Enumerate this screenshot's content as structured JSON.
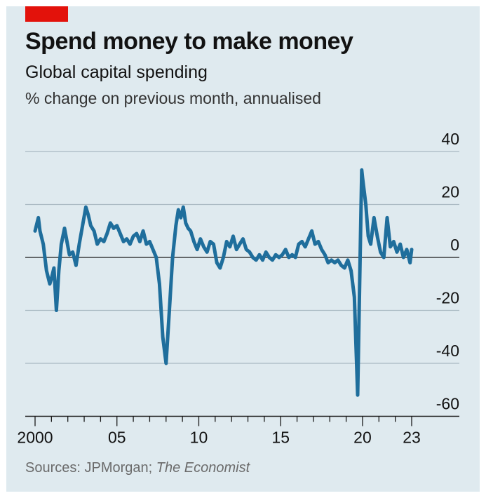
{
  "header": {
    "title": "Spend money to make money",
    "subtitle": "Global capital spending",
    "unit": "% change on previous month, annualised"
  },
  "footer": {
    "source_prefix": "Sources: JPMorgan;",
    "source_publication": "The Economist"
  },
  "colors": {
    "line": "#1f6e9c",
    "accent": "#e3120b",
    "background": "#dfeaef",
    "grid": "#a9b9c2"
  },
  "chart_data": {
    "type": "line",
    "title": "Spend money to make money",
    "subtitle": "Global capital spending",
    "ylabel": "% change on previous month, annualised",
    "xlabel": "",
    "xlim": [
      2000,
      2023
    ],
    "ylim": [
      -60,
      40
    ],
    "y_ticks": [
      40,
      20,
      0,
      -20,
      -40,
      -60
    ],
    "y_tick_labels": [
      "40",
      "20",
      "0",
      "-20",
      "-40",
      "-60"
    ],
    "y_axis_side": "right",
    "x_ticks": [
      2000,
      2005,
      2010,
      2015,
      2020,
      2023
    ],
    "x_tick_labels": [
      "2000",
      "05",
      "10",
      "15",
      "20",
      "23"
    ],
    "grid": "horizontal",
    "legend": "none",
    "series": [
      {
        "x": [
          2000.0,
          2000.2,
          2000.3,
          2000.5,
          2000.7,
          2000.9,
          2001.0,
          2001.15,
          2001.3,
          2001.45,
          2001.6,
          2001.8,
          2001.95,
          2002.1,
          2002.3,
          2002.5,
          2002.7,
          2002.9,
          2003.1,
          2003.25,
          2003.4,
          2003.6,
          2003.8,
          2004.0,
          2004.2,
          2004.4,
          2004.6,
          2004.8,
          2005.0,
          2005.2,
          2005.4,
          2005.6,
          2005.8,
          2006.0,
          2006.2,
          2006.4,
          2006.6,
          2006.8,
          2007.0,
          2007.2,
          2007.4,
          2007.6,
          2007.8,
          2008.0,
          2008.2,
          2008.4,
          2008.6,
          2008.75,
          2008.9,
          2009.05,
          2009.2,
          2009.35,
          2009.5,
          2009.7,
          2009.9,
          2010.1,
          2010.3,
          2010.5,
          2010.7,
          2010.9,
          2011.1,
          2011.3,
          2011.5,
          2011.7,
          2011.9,
          2012.1,
          2012.3,
          2012.5,
          2012.7,
          2012.9,
          2013.1,
          2013.3,
          2013.5,
          2013.7,
          2013.9,
          2014.1,
          2014.3,
          2014.5,
          2014.7,
          2014.9,
          2015.1,
          2015.3,
          2015.5,
          2015.7,
          2015.9,
          2016.1,
          2016.3,
          2016.5,
          2016.7,
          2016.9,
          2017.1,
          2017.3,
          2017.5,
          2017.7,
          2017.9,
          2018.1,
          2018.3,
          2018.5,
          2018.7,
          2018.9,
          2019.1,
          2019.3,
          2019.5,
          2019.7,
          2019.85,
          2019.95,
          2020.0,
          2020.1,
          2020.2,
          2020.35,
          2020.5,
          2020.7,
          2020.9,
          2021.1,
          2021.3,
          2021.5,
          2021.7,
          2021.9,
          2022.1,
          2022.3,
          2022.5,
          2022.7,
          2022.9,
          2023.0
        ],
        "y": [
          10,
          15,
          10,
          5,
          -5,
          -10,
          -8,
          -4,
          -20,
          -5,
          5,
          11,
          6,
          1,
          2,
          -3,
          5,
          12,
          19,
          16,
          12,
          10,
          5,
          7,
          6,
          9,
          13,
          11,
          12,
          9,
          6,
          7,
          5,
          8,
          9,
          6,
          10,
          5,
          6,
          3,
          0,
          -10,
          -30,
          -40,
          -20,
          0,
          12,
          18,
          15,
          19,
          13,
          11,
          10,
          6,
          3,
          7,
          4,
          2,
          6,
          5,
          -2,
          -4,
          0,
          6,
          4,
          8,
          3,
          5,
          7,
          3,
          2,
          0,
          -1,
          1,
          -1,
          2,
          0,
          -1,
          1,
          0,
          1,
          3,
          0,
          1,
          0,
          5,
          6,
          4,
          7,
          10,
          5,
          6,
          3,
          1,
          -2,
          -1,
          -2,
          -1,
          -3,
          -4,
          -1,
          -5,
          -15,
          -52,
          0,
          33,
          30,
          25,
          20,
          8,
          5,
          15,
          8,
          2,
          0,
          15,
          4,
          6,
          2,
          5,
          0,
          3,
          -2,
          3
        ]
      }
    ]
  }
}
